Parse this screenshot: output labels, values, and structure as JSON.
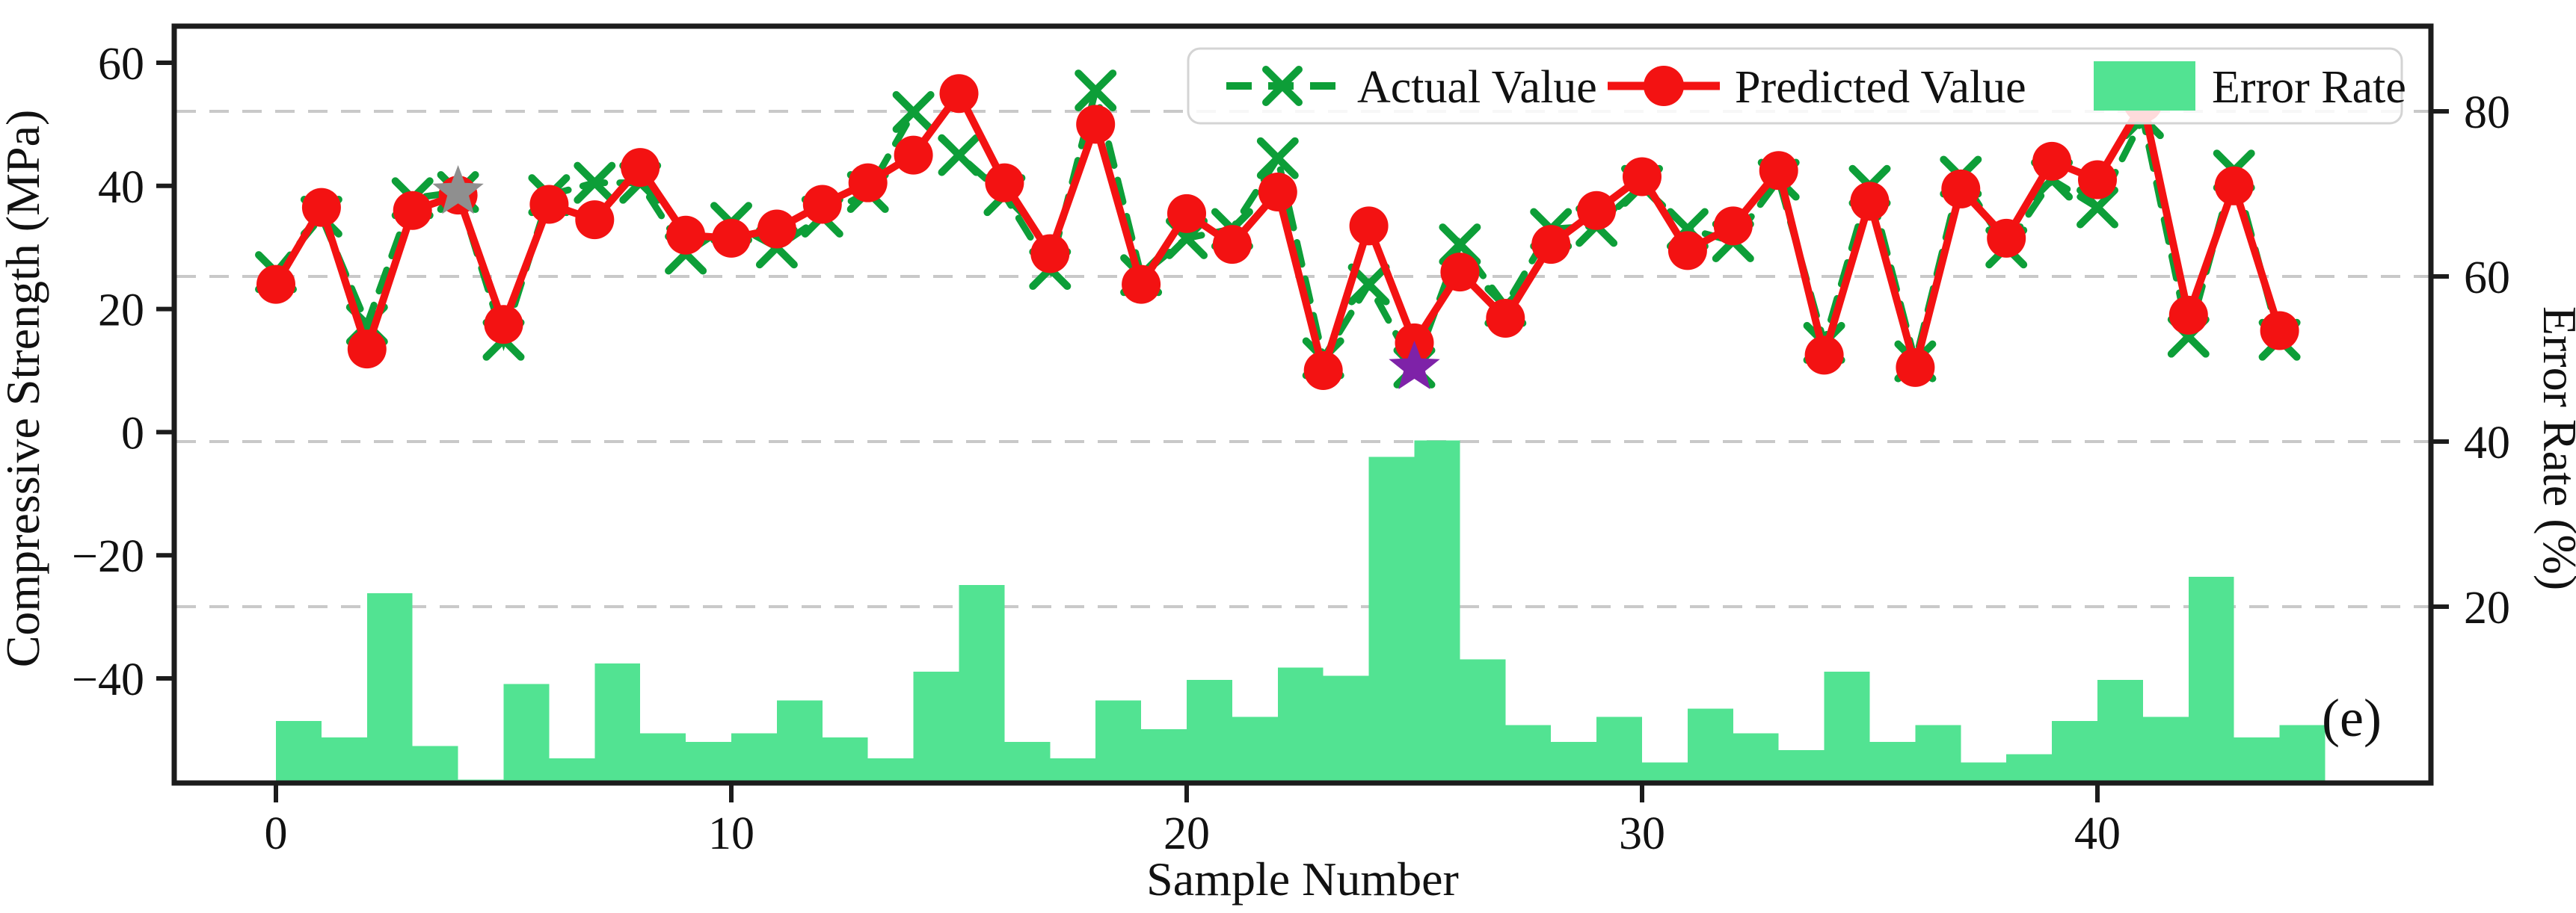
{
  "chart_data": {
    "type": "line+bar",
    "title": "",
    "xlabel": "Sample Number",
    "ylabel_left": "Compressive Strength (MPa)",
    "ylabel_right": "Error Rate (%)",
    "annotation": "(e)",
    "legend_position": "top",
    "grid": "dashed horizontal at right-axis ticks",
    "x": [
      0,
      1,
      2,
      3,
      4,
      5,
      6,
      7,
      8,
      9,
      10,
      11,
      12,
      13,
      14,
      15,
      16,
      17,
      18,
      19,
      20,
      21,
      22,
      23,
      24,
      25,
      26,
      27,
      28,
      29,
      30,
      31,
      32,
      33,
      34,
      35,
      36,
      37,
      38,
      39,
      40,
      41,
      42,
      43,
      44
    ],
    "series": [
      {
        "name": "Actual Value",
        "type": "line",
        "style": "dashed",
        "marker": "x",
        "axis": "left",
        "color": "#0d9e38",
        "values": [
          26,
          35,
          17.5,
          38,
          39,
          15,
          38.5,
          40.5,
          40.5,
          29,
          34,
          30,
          35,
          39,
          52,
          45,
          38.5,
          26.5,
          55.5,
          25.5,
          31.5,
          33,
          44.5,
          12,
          24,
          10.5,
          30.5,
          20.5,
          33,
          33.5,
          40,
          33,
          31,
          41,
          14.5,
          40,
          11.5,
          41.5,
          30,
          41,
          36.5,
          51,
          15.5,
          42.5,
          15
        ]
      },
      {
        "name": "Predicted Value",
        "type": "line",
        "style": "solid",
        "marker": "circle",
        "axis": "left",
        "color": "#f31212",
        "values": [
          24,
          36.5,
          13.5,
          36,
          38.5,
          17.5,
          37,
          34.5,
          43,
          32,
          31.5,
          33,
          37,
          40.5,
          45,
          55,
          40.5,
          29,
          50,
          24,
          35.5,
          30.5,
          39,
          10,
          33.5,
          14.5,
          26,
          18.5,
          30.5,
          36,
          41.5,
          29.5,
          33.5,
          42.5,
          12.5,
          37.5,
          10.5,
          39.5,
          31.5,
          44,
          41,
          53.5,
          19,
          40,
          16.5
        ]
      },
      {
        "name": "Error Rate",
        "type": "bar",
        "axis": "right",
        "color": "#52e392",
        "values": [
          7.5,
          5.5,
          23,
          4.5,
          0.4,
          12,
          3,
          14.5,
          6,
          5,
          6,
          10,
          5.5,
          3,
          13.5,
          24,
          5,
          3,
          10,
          6.5,
          12.5,
          8,
          14,
          13,
          39.5,
          41.5,
          15,
          7,
          5,
          8,
          2.5,
          9,
          6,
          4,
          13.5,
          5,
          7,
          2.5,
          3.5,
          7.5,
          12.5,
          8,
          25,
          5.5,
          7
        ]
      }
    ],
    "special_markers": [
      {
        "sample": 4,
        "value": 39,
        "shape": "star",
        "color": "#8f8f8f",
        "name": "gray-star"
      },
      {
        "sample": 25,
        "value": 10.5,
        "shape": "star",
        "color": "#7e22a8",
        "name": "purple-star"
      }
    ],
    "left_axis": {
      "ticks": [
        60,
        40,
        20,
        0,
        -20,
        -40
      ]
    },
    "right_axis": {
      "ticks": [
        80,
        60,
        40,
        20
      ]
    },
    "x_axis": {
      "ticks": [
        0,
        10,
        20,
        30,
        40
      ]
    },
    "legend": {
      "items": [
        {
          "label": "Actual Value"
        },
        {
          "label": "Predicted Value"
        },
        {
          "label": "Error Rate"
        }
      ]
    },
    "colors": {
      "actual_line": "#0d9e38",
      "predicted_line": "#f31212",
      "error_bar": "#52e392",
      "gridline": "#c9c9c9",
      "spine": "#1c1c1c",
      "gray_star": "#8f8f8f",
      "purple_star": "#7e22a8"
    }
  }
}
